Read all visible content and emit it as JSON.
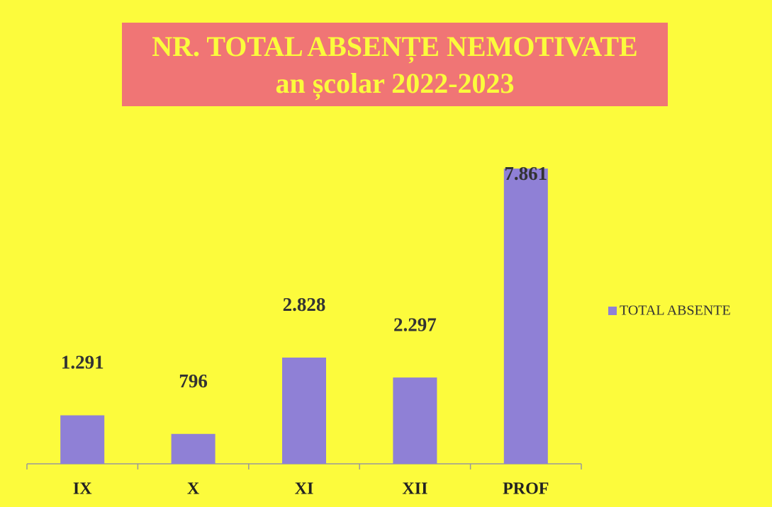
{
  "chart_data": {
    "type": "bar",
    "title": "NR. TOTAL ABSENȚE NEMOTIVATE",
    "subtitle": "an școlar 2022-2023",
    "categories": [
      "IX",
      "X",
      "XI",
      "XII",
      "PROF"
    ],
    "series": [
      {
        "name": "TOTAL ABSENTE",
        "color": "#8f80d6",
        "values": [
          1291,
          796,
          2828,
          2297,
          7861
        ],
        "value_labels": [
          "1.291",
          "796",
          "2.828",
          "2.297",
          "7.861"
        ]
      }
    ],
    "legend": "right"
  }
}
